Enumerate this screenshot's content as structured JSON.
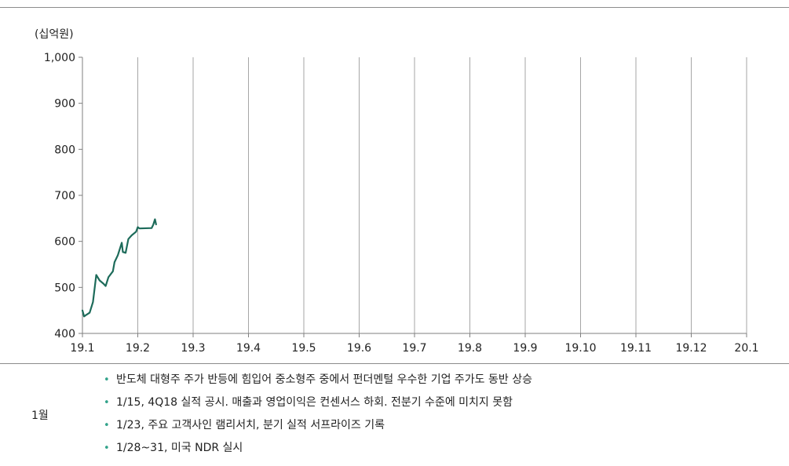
{
  "unit_label": "(십억원)",
  "chart_data": {
    "type": "line",
    "title": "",
    "ylabel": "",
    "xlabel": "",
    "ylim": [
      400,
      1000
    ],
    "yticks": [
      400,
      500,
      600,
      700,
      800,
      900,
      1000
    ],
    "ytick_labels": [
      "400",
      "500",
      "600",
      "700",
      "800",
      "900",
      "1,000"
    ],
    "categories": [
      "19.1",
      "19.2",
      "19.3",
      "19.4",
      "19.5",
      "19.6",
      "19.7",
      "19.8",
      "19.9",
      "19.10",
      "19.11",
      "19.12",
      "20.1"
    ],
    "grid": "vertical",
    "line_color": "#1d6b5a",
    "series": [
      {
        "name": "",
        "points": [
          [
            0.0,
            450
          ],
          [
            0.03,
            437
          ],
          [
            0.08,
            441
          ],
          [
            0.13,
            445
          ],
          [
            0.19,
            468
          ],
          [
            0.25,
            527
          ],
          [
            0.31,
            515
          ],
          [
            0.38,
            508
          ],
          [
            0.42,
            503
          ],
          [
            0.47,
            522
          ],
          [
            0.55,
            535
          ],
          [
            0.58,
            555
          ],
          [
            0.64,
            570
          ],
          [
            0.71,
            597
          ],
          [
            0.73,
            577
          ],
          [
            0.78,
            575
          ],
          [
            0.83,
            605
          ],
          [
            0.89,
            613
          ],
          [
            0.97,
            621
          ],
          [
            1.0,
            631
          ],
          [
            1.03,
            628
          ],
          [
            1.25,
            629
          ],
          [
            1.28,
            636
          ],
          [
            1.31,
            648
          ],
          [
            1.33,
            637
          ]
        ]
      }
    ]
  },
  "notes": {
    "month": "1월",
    "bullet": "•",
    "items": [
      "반도체 대형주 주가 반등에 힘입어 중소형주 중에서 펀더멘털 우수한 기업 주가도 동반 상승",
      "1/15, 4Q18 실적 공시. 매출과 영업이익은 컨센서스 하회. 전분기 수준에 미치지 못함",
      "1/23, 주요 고객사인 램리서치, 분기 실적 서프라이즈 기록",
      "1/28~31, 미국 NDR 실시"
    ]
  }
}
